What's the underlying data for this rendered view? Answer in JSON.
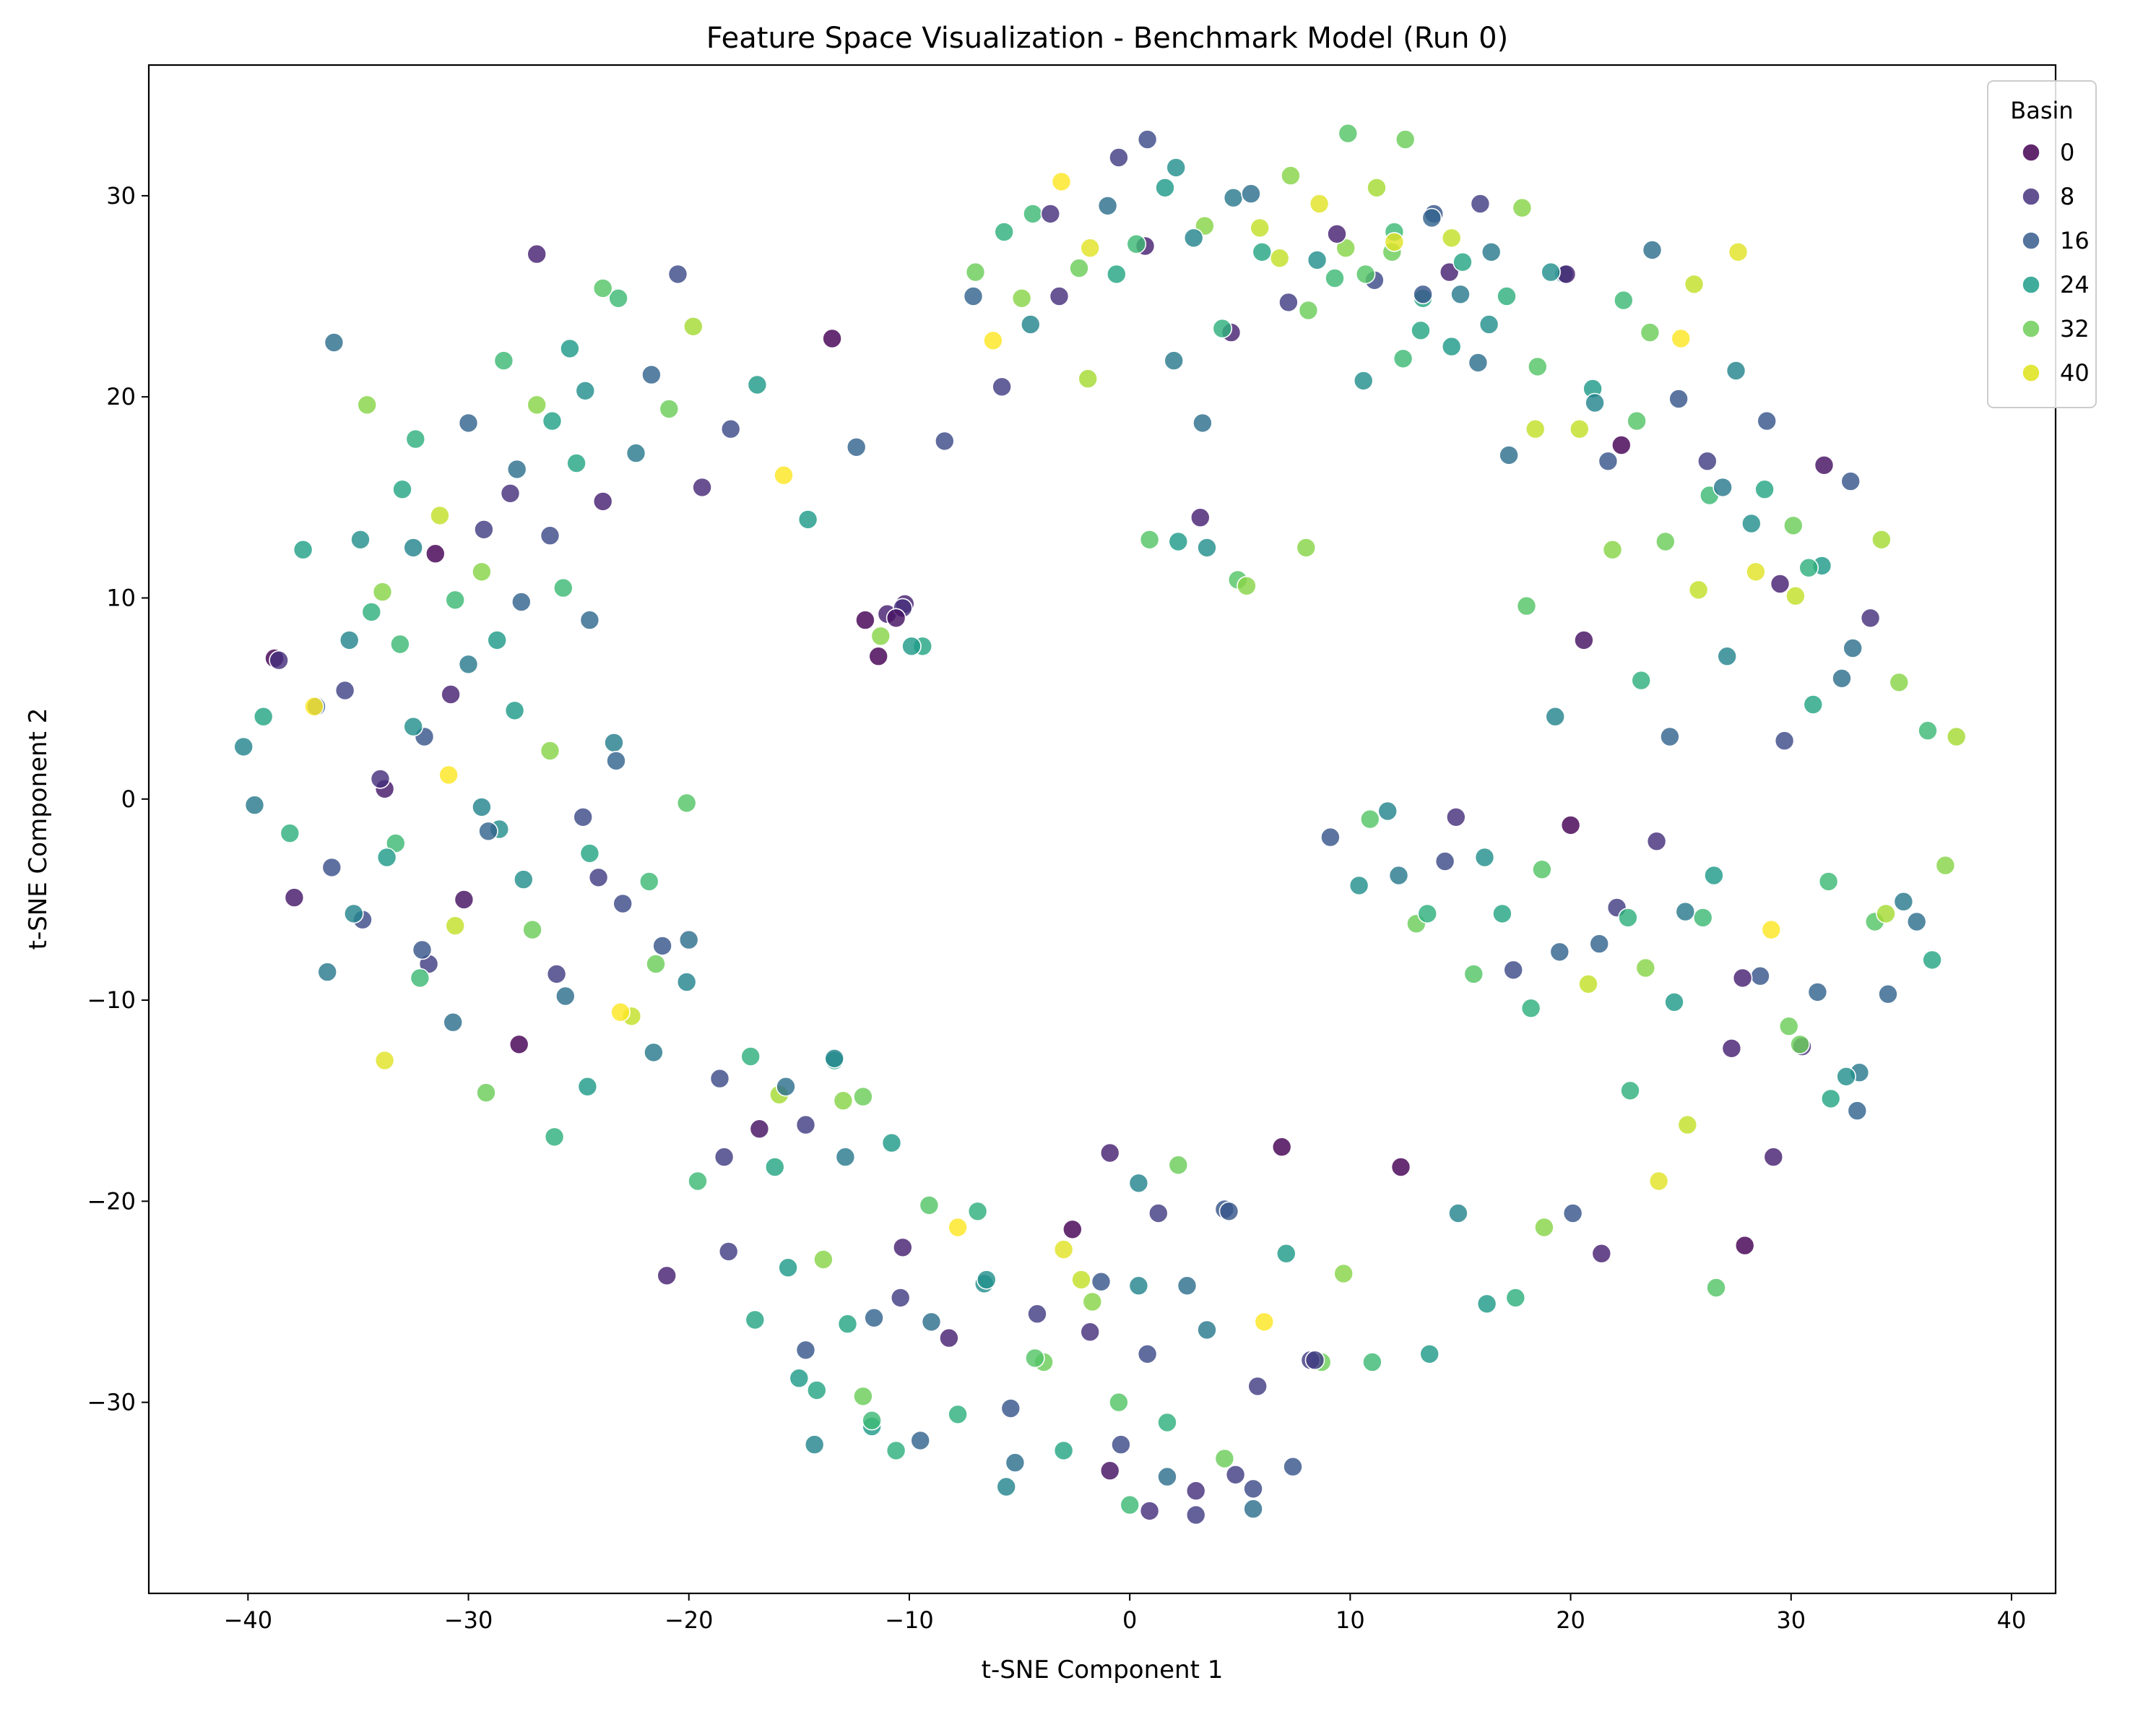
{
  "chart_data": {
    "type": "scatter",
    "title": "Feature Space Visualization - Benchmark Model (Run 0)",
    "xlabel": "t-SNE Component 1",
    "ylabel": "t-SNE Component 2",
    "xlim": [
      -44.5,
      42
    ],
    "ylim": [
      -39.5,
      36.5
    ],
    "xticks": [
      -40,
      -30,
      -20,
      -10,
      0,
      10,
      20,
      30,
      40
    ],
    "yticks": [
      -30,
      -20,
      -10,
      0,
      10,
      20,
      30
    ],
    "grid": false,
    "legend": {
      "title": "Basin",
      "placement": "top-right",
      "entries": [
        {
          "label": "0",
          "color": "#440154"
        },
        {
          "label": "8",
          "color": "#46337e"
        },
        {
          "label": "16",
          "color": "#365c8d"
        },
        {
          "label": "24",
          "color": "#1f9e89"
        },
        {
          "label": "32",
          "color": "#6ece58"
        },
        {
          "label": "40",
          "color": "#dde318"
        }
      ]
    },
    "color_scale": {
      "min": 0,
      "max": 44,
      "stops": [
        "#440154",
        "#482878",
        "#3e4989",
        "#31688e",
        "#26828e",
        "#1f9e89",
        "#35b779",
        "#6ece58",
        "#b5de2b",
        "#fde725"
      ]
    },
    "series": [
      {
        "x": [
          -40.2,
          -39.7,
          -39.3,
          -38.8,
          -38.1,
          -37.5,
          -36.9,
          -36.2,
          -35.6,
          -34.9,
          -34.4,
          -33.8,
          -33.1,
          -32.5,
          -32.0,
          -31.3,
          -30.6,
          -30.0,
          -29.4,
          -28.7,
          -28.1,
          -27.6,
          -26.9,
          -26.3,
          -25.7,
          -25.1,
          -24.5,
          -23.9,
          -23.4,
          -37.9,
          -36.4,
          -34.8,
          -33.3,
          -31.8,
          -30.2,
          -28.6,
          -27.1,
          -25.6,
          -24.1,
          -22.6,
          -21.2,
          -20.1,
          -38.6,
          -37.0,
          -35.4,
          -33.9,
          -32.4,
          -30.8,
          -29.3,
          -27.8,
          -26.2,
          -24.7,
          -23.2,
          -21.7,
          -20.5,
          -19.8,
          -36.1,
          -34.6,
          -33.0,
          -31.5,
          -30.0,
          -28.4,
          -26.9,
          -25.4,
          -23.9,
          -22.4,
          -20.9,
          -19.4,
          -18.1,
          -16.9,
          -15.7,
          -14.6,
          -13.5,
          -12.4,
          -11.3,
          -10.2,
          -9.4,
          -33.8,
          -32.2,
          -30.7,
          -29.2,
          -27.7,
          -26.1,
          -24.6,
          -23.1,
          -21.6,
          -20.1,
          -18.6,
          -17.2,
          -15.9,
          -14.7,
          -13.4,
          -12.1,
          -35.2,
          -33.7,
          -32.1,
          -30.6,
          -29.1,
          -27.5,
          -26.0,
          -24.5,
          -23.0,
          -21.5,
          -20.0,
          -34.0,
          -32.5,
          -30.9,
          -29.4,
          -27.9,
          -26.3,
          -24.8,
          -23.3,
          -21.8
        ],
        "y": [
          2.6,
          -0.3,
          4.1,
          7.0,
          -1.7,
          12.4,
          4.6,
          -3.4,
          5.4,
          12.9,
          9.3,
          0.5,
          7.7,
          12.5,
          3.1,
          14.1,
          9.9,
          6.7,
          11.3,
          7.9,
          15.2,
          9.8,
          19.6,
          13.1,
          10.5,
          16.7,
          8.9,
          14.8,
          2.8,
          -4.9,
          -8.6,
          -6.0,
          -2.2,
          -8.2,
          -5.0,
          -1.5,
          -6.5,
          -9.8,
          -3.9,
          -10.8,
          -7.3,
          -0.2,
          6.9,
          4.6,
          7.9,
          10.3,
          17.9,
          5.2,
          13.4,
          16.4,
          18.8,
          20.3,
          24.9,
          21.1,
          26.1,
          23.5,
          22.7,
          19.6,
          15.4,
          12.2,
          18.7,
          21.8,
          27.1,
          22.4,
          25.4,
          17.2,
          19.4,
          15.5,
          18.4,
          20.6,
          16.1,
          13.9,
          22.9,
          17.5,
          8.1,
          9.7,
          7.6,
          -13.0,
          -8.9,
          -11.1,
          -14.6,
          -12.2,
          -16.8,
          -14.3,
          -10.6,
          -12.6,
          -9.1,
          -13.9,
          -12.8,
          -14.7,
          -16.2,
          -13.0,
          -14.8,
          -5.7,
          -2.9,
          -7.5,
          -6.3,
          -1.6,
          -4.0,
          -8.7,
          -2.7,
          -5.2,
          -8.2,
          -7.0,
          1.0,
          3.6,
          1.2,
          -0.4,
          4.4,
          2.4,
          -0.9,
          1.9,
          -4.1
        ],
        "c": [
          20,
          18,
          26,
          0,
          28,
          25,
          14,
          11,
          9,
          22,
          28,
          3,
          30,
          20,
          12,
          40,
          30,
          18,
          36,
          24,
          6,
          14,
          36,
          10,
          30,
          26,
          15,
          4,
          19,
          3,
          18,
          10,
          30,
          8,
          2,
          22,
          34,
          16,
          8,
          40,
          12,
          32,
          6,
          44,
          20,
          36,
          28,
          4,
          8,
          16,
          25,
          22,
          30,
          14,
          10,
          38,
          16,
          36,
          26,
          0,
          14,
          30,
          4,
          24,
          32,
          18,
          34,
          5,
          10,
          24,
          44,
          24,
          0,
          14,
          36,
          4,
          26,
          42,
          30,
          16,
          34,
          0,
          28,
          24,
          44,
          18,
          20,
          10,
          28,
          38,
          8,
          26,
          34,
          20,
          24,
          12,
          40,
          14,
          22,
          8,
          26,
          10,
          34,
          16,
          6,
          22,
          44,
          20,
          24,
          36,
          10,
          14,
          30,
          32
        ]
      },
      {
        "x": [
          -21.0,
          -19.6,
          -18.2,
          -16.8,
          -15.5,
          -14.2,
          -12.9,
          -11.6,
          -10.3,
          -9.0,
          -7.8,
          -6.6,
          -5.4,
          -4.2,
          -3.0,
          -1.8,
          -0.5,
          0.8,
          -18.4,
          -17.0,
          -15.6,
          -14.3,
          -13.0,
          -11.7,
          -10.4,
          -9.1,
          -7.8,
          -6.5,
          -5.2,
          -3.9,
          -2.6,
          -1.3,
          0.0,
          1.3,
          2.6,
          -16.1,
          -14.7,
          -13.4,
          -12.1,
          -10.8,
          -9.5,
          -8.2,
          -6.9,
          -5.6,
          -4.3,
          -3.0,
          -1.7,
          -0.4,
          0.9,
          2.2,
          3.5,
          4.8,
          6.1,
          7.4,
          8.7,
          -0.9,
          0.4,
          1.7,
          3.0,
          4.3,
          5.6,
          6.9,
          8.2,
          -2.2,
          -0.9,
          0.4,
          1.7,
          3.0,
          4.3,
          5.6,
          -15.0,
          -13.9,
          -12.8,
          -11.7,
          -10.6
        ],
        "y": [
          -23.7,
          -19.0,
          -22.5,
          -16.4,
          -23.3,
          -29.4,
          -17.8,
          -25.8,
          -22.3,
          -26.0,
          -21.3,
          -24.1,
          -30.3,
          -25.6,
          -22.4,
          -26.5,
          -30.0,
          -27.6,
          -17.8,
          -25.9,
          -14.3,
          -32.1,
          -15.0,
          -31.2,
          -24.8,
          -20.2,
          -30.6,
          -23.9,
          -33.0,
          -28.0,
          -21.4,
          -24.0,
          -35.1,
          -20.6,
          -24.2,
          -18.3,
          -27.4,
          -12.9,
          -29.7,
          -17.1,
          -31.9,
          -26.8,
          -20.5,
          -34.2,
          -27.8,
          -32.4,
          -25.0,
          -32.1,
          -35.4,
          -18.2,
          -26.4,
          -33.6,
          -26.0,
          -33.2,
          -28.0,
          -17.6,
          -19.1,
          -31.0,
          -34.4,
          -20.4,
          -35.3,
          -17.3,
          -27.9,
          -23.9,
          -33.4,
          -24.2,
          -33.7,
          -35.6,
          -32.8,
          -34.3,
          -28.8,
          -22.9,
          -26.1,
          -30.9,
          -32.4
        ],
        "c": [
          4,
          30,
          8,
          2,
          24,
          26,
          18,
          14,
          4,
          16,
          44,
          22,
          12,
          8,
          42,
          6,
          32,
          10,
          8,
          26,
          16,
          20,
          36,
          24,
          8,
          32,
          28,
          22,
          16,
          34,
          0,
          12,
          30,
          8,
          16,
          26,
          12,
          20,
          34,
          24,
          14,
          4,
          28,
          20,
          32,
          26,
          36,
          10,
          6,
          34,
          18,
          8,
          44,
          12,
          34,
          4,
          20,
          28,
          6,
          12,
          16,
          0,
          8,
          40,
          2,
          20,
          16,
          8,
          34,
          10,
          24,
          36,
          26,
          30,
          28
        ]
      },
      {
        "x": [
          4.5,
          5.8,
          7.1,
          8.4,
          9.7,
          11.0,
          12.3,
          13.6,
          14.9,
          16.2,
          17.5,
          18.8,
          20.1,
          21.4,
          22.7,
          24.0,
          25.3,
          26.6,
          27.9,
          29.2,
          30.5,
          31.8,
          33.1,
          34.4,
          35.7,
          37.0,
          9.1,
          10.4,
          11.7,
          13.0,
          14.3,
          15.6,
          16.9,
          18.2,
          19.5,
          20.8,
          22.1,
          23.4,
          24.7,
          26.0,
          27.3,
          28.6,
          29.9,
          31.2,
          32.5,
          33.8,
          35.1,
          36.4,
          10.9,
          12.2,
          13.5,
          14.8,
          16.1,
          17.4,
          18.7,
          20.0,
          21.3,
          22.6,
          23.9,
          25.2,
          26.5,
          27.8,
          29.1,
          30.4,
          31.7,
          33.0,
          34.3,
          18.0,
          19.3,
          20.6,
          21.9,
          23.2,
          24.5,
          25.8,
          27.1,
          28.4,
          29.7,
          31.0,
          32.3,
          33.6,
          34.9,
          36.2,
          37.5,
          8.0,
          9.3,
          10.6,
          11.9,
          13.2,
          14.5,
          15.8,
          17.1,
          18.4,
          19.7,
          21.0,
          22.3,
          23.6,
          24.9,
          26.2,
          27.5,
          28.8,
          30.1,
          31.4,
          32.7,
          12.0,
          13.3,
          14.6,
          15.9,
          17.2,
          18.5,
          19.8,
          21.1,
          22.4,
          23.7,
          25.0,
          26.3,
          27.6,
          28.9,
          30.2,
          31.5,
          32.8,
          34.1,
          17.8,
          19.1,
          20.4,
          21.7,
          23.0,
          24.3,
          25.6,
          26.9,
          28.2,
          29.5,
          30.8
        ],
        "y": [
          -20.5,
          -29.2,
          -22.6,
          -27.9,
          -23.6,
          -28.0,
          -18.3,
          -27.6,
          -20.6,
          -25.1,
          -24.8,
          -21.3,
          -20.6,
          -22.6,
          -14.5,
          -19.0,
          -16.2,
          -24.3,
          -22.2,
          -17.8,
          -12.3,
          -14.9,
          -13.6,
          -9.7,
          -6.1,
          -3.3,
          -1.9,
          -4.3,
          -0.6,
          -6.2,
          -3.1,
          -8.7,
          -5.7,
          -10.4,
          -7.6,
          -9.2,
          -5.4,
          -8.4,
          -10.1,
          -5.9,
          -12.4,
          -8.8,
          -11.3,
          -9.6,
          -13.8,
          -6.1,
          -5.1,
          -8.0,
          -1.0,
          -3.8,
          -5.7,
          -0.9,
          -2.9,
          -8.5,
          -3.5,
          -1.3,
          -7.2,
          -5.9,
          -2.1,
          -5.6,
          -3.8,
          -8.9,
          -6.5,
          -12.2,
          -4.1,
          -15.5,
          -5.7,
          9.6,
          4.1,
          7.9,
          12.4,
          5.9,
          3.1,
          10.4,
          7.1,
          11.3,
          2.9,
          4.7,
          6.0,
          9.0,
          5.8,
          3.4,
          3.1,
          12.5,
          25.9,
          20.8,
          27.2,
          23.3,
          26.2,
          21.7,
          25.0,
          18.4,
          26.1,
          20.4,
          17.6,
          23.2,
          19.9,
          16.8,
          21.3,
          15.4,
          13.6,
          11.6,
          15.8,
          28.2,
          24.9,
          22.5,
          29.6,
          17.1,
          21.5,
          26.1,
          19.7,
          24.8,
          27.3,
          22.9,
          15.1,
          27.2,
          18.8,
          10.1,
          16.6,
          7.5,
          12.9,
          29.4,
          26.2,
          18.4,
          16.8,
          18.8,
          12.8,
          25.6,
          15.5,
          13.7,
          10.7,
          11.5
        ],
        "c": [
          12,
          8,
          24,
          8,
          36,
          30,
          0,
          24,
          20,
          24,
          28,
          36,
          12,
          4,
          28,
          42,
          40,
          32,
          0,
          4,
          6,
          26,
          18,
          14,
          16,
          36,
          12,
          22,
          20,
          34,
          10,
          32,
          26,
          28,
          14,
          40,
          8,
          36,
          24,
          30,
          4,
          12,
          34,
          14,
          22,
          32,
          18,
          26,
          32,
          18,
          28,
          6,
          22,
          10,
          32,
          0,
          14,
          28,
          6,
          18,
          24,
          4,
          44,
          34,
          30,
          14,
          38,
          32,
          20,
          2,
          36,
          28,
          14,
          40,
          20,
          42,
          10,
          26,
          16,
          6,
          36,
          30,
          38,
          36,
          30,
          22,
          34,
          26,
          4,
          16,
          28,
          40,
          18,
          24,
          0,
          34,
          12,
          8,
          20,
          26,
          34,
          24,
          12,
          30,
          26,
          24,
          8,
          16,
          32,
          4,
          20,
          30,
          16,
          44,
          30,
          42,
          12,
          40,
          2,
          16,
          38,
          36,
          22,
          40,
          12,
          32,
          34,
          40,
          18,
          22,
          4,
          28
        ]
      },
      {
        "x": [
          -7.0,
          -5.7,
          -4.4,
          -3.1,
          -1.8,
          -0.5,
          0.8,
          2.1,
          3.4,
          4.7,
          6.0,
          7.3,
          8.6,
          9.9,
          11.2,
          12.5,
          13.8,
          15.1,
          16.4,
          -8.4,
          -7.1,
          -5.8,
          -4.5,
          -3.2,
          -1.9,
          -0.6,
          0.7,
          2.0,
          3.3,
          4.6,
          5.9,
          7.2,
          8.5,
          9.8,
          11.1,
          12.4,
          13.7,
          15.0,
          16.3,
          -6.2,
          -4.9,
          -3.6,
          -2.3,
          -1.0,
          0.3,
          1.6,
          2.9,
          4.2,
          5.5,
          6.8,
          8.1,
          9.4,
          10.7,
          12.0,
          13.3,
          14.6,
          0.9,
          2.2,
          3.5,
          3.2,
          4.9,
          5.3,
          -12.0,
          -11.0,
          -10.3,
          -9.9,
          -11.4,
          -10.6
        ],
        "y": [
          26.2,
          28.2,
          29.1,
          30.7,
          27.4,
          31.9,
          32.8,
          31.4,
          28.5,
          29.9,
          27.2,
          31.0,
          29.6,
          33.1,
          30.4,
          32.8,
          29.1,
          26.7,
          27.2,
          17.8,
          25.0,
          20.5,
          23.6,
          25.0,
          20.9,
          26.1,
          27.5,
          21.8,
          18.7,
          23.2,
          28.4,
          24.7,
          26.8,
          27.4,
          25.8,
          21.9,
          28.9,
          25.1,
          23.6,
          22.8,
          24.9,
          29.1,
          26.4,
          29.5,
          27.6,
          30.4,
          27.9,
          23.4,
          30.1,
          26.9,
          24.3,
          28.1,
          26.1,
          27.7,
          25.1,
          27.9,
          12.9,
          12.8,
          12.5,
          14.0,
          10.9,
          10.6,
          8.9,
          9.2,
          9.5,
          7.6,
          7.1,
          9.0
        ],
        "c": [
          34,
          28,
          30,
          44,
          42,
          8,
          10,
          22,
          36,
          18,
          26,
          36,
          42,
          32,
          38,
          34,
          12,
          26,
          18,
          10,
          14,
          8,
          20,
          6,
          38,
          26,
          4,
          18,
          16,
          4,
          40,
          8,
          22,
          36,
          10,
          30,
          14,
          18,
          22,
          44,
          36,
          6,
          34,
          16,
          30,
          24,
          20,
          28,
          16,
          40,
          34,
          4,
          32,
          42,
          12,
          40,
          32,
          24,
          22,
          4,
          32,
          36,
          0,
          4,
          6,
          24,
          0,
          2
        ]
      }
    ]
  }
}
